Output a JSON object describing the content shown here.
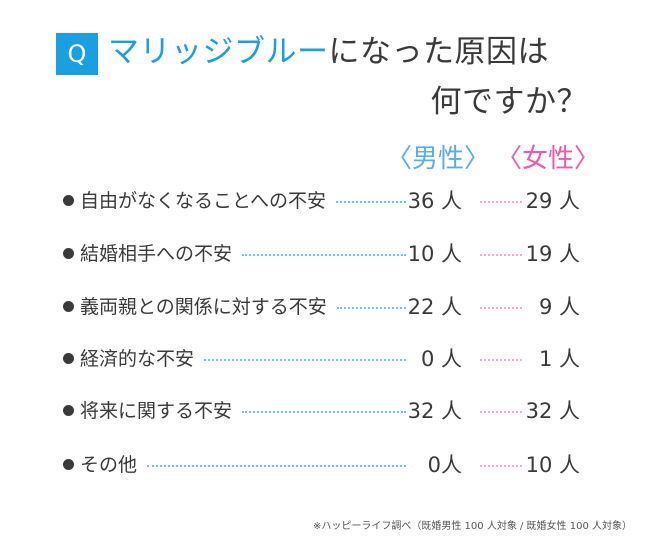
{
  "title": {
    "badge": "Q",
    "highlight": "マリッジブルー",
    "line1_rest": "になった原因は",
    "line2": "何ですか？"
  },
  "colors": {
    "accent_blue": "#1a9fe0",
    "male": "#5aaee8",
    "female": "#f05aa8"
  },
  "chart_data": {
    "type": "table",
    "series": [
      {
        "name": "〈男性〉",
        "values": [
          36,
          10,
          22,
          0,
          32,
          0
        ]
      },
      {
        "name": "〈女性〉",
        "values": [
          29,
          19,
          9,
          1,
          32,
          10
        ]
      }
    ],
    "categories": [
      "自由がなくなることへの不安",
      "結婚相手への不安",
      "義両親との関係に対する不安",
      "経済的な不安",
      "将来に関する不安",
      "その他"
    ],
    "rows": [
      {
        "label": "自由がなくなることへの不安",
        "male": "36 人",
        "female": "29 人"
      },
      {
        "label": "結婚相手への不安",
        "male": "10 人",
        "female": "19 人"
      },
      {
        "label": "義両親との関係に対する不安",
        "male": "22 人",
        "female": "9 人"
      },
      {
        "label": "経済的な不安",
        "male": "0 人",
        "female": "1 人"
      },
      {
        "label": "将来に関する不安",
        "male": "32 人",
        "female": "32 人"
      },
      {
        "label": "その他",
        "male": "0人",
        "female": "10 人"
      }
    ]
  },
  "footnote": "※ハッピーライフ調べ（既婚男性 100 人対象 / 既婚女性 100 人対象）"
}
